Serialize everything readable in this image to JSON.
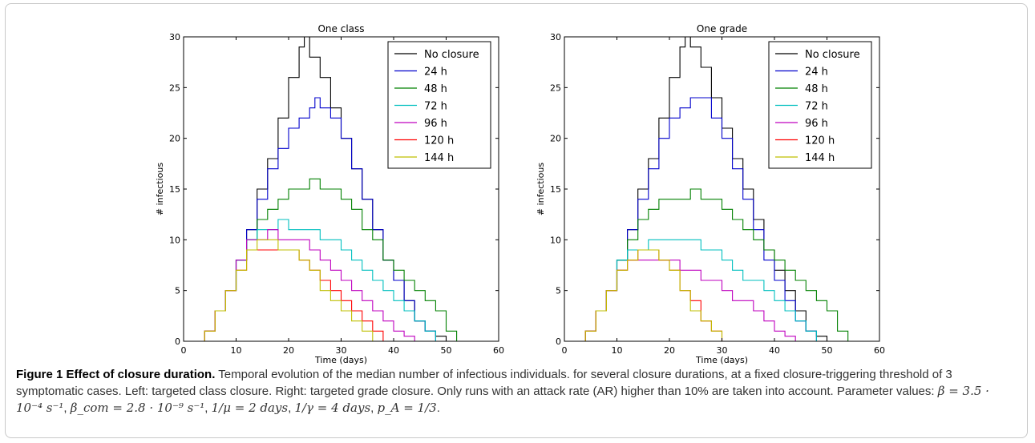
{
  "chart_data": [
    {
      "type": "line",
      "title": "One class",
      "xlabel": "Time (days)",
      "ylabel": "# infectious",
      "xlim": [
        0,
        60
      ],
      "ylim": [
        0,
        30
      ],
      "xticks": [
        0,
        10,
        20,
        30,
        40,
        50,
        60
      ],
      "yticks": [
        0,
        5,
        10,
        15,
        20,
        25,
        30
      ],
      "legend_position": "top-right",
      "series": [
        {
          "name": "No closure",
          "color": "#000000",
          "x": [
            2,
            4,
            6,
            8,
            10,
            12,
            14,
            16,
            18,
            20,
            22,
            23,
            24,
            26,
            28,
            30,
            32,
            34,
            36,
            38,
            40,
            42,
            44,
            46,
            48,
            50,
            52,
            54
          ],
          "y": [
            0,
            1,
            3,
            5,
            8,
            11,
            15,
            18,
            22,
            26,
            29,
            30,
            28,
            26,
            23,
            20,
            17,
            14,
            11,
            8,
            6,
            4,
            2,
            1,
            0.5,
            0,
            0,
            0
          ]
        },
        {
          "name": "24 h",
          "color": "#0000cc",
          "x": [
            2,
            4,
            6,
            8,
            10,
            12,
            14,
            16,
            18,
            20,
            22,
            24,
            25,
            26,
            28,
            30,
            32,
            34,
            36,
            38,
            40,
            42,
            44,
            46,
            48,
            50
          ],
          "y": [
            0,
            1,
            3,
            5,
            8,
            11,
            14,
            17,
            19,
            21,
            22,
            23,
            24,
            23,
            22,
            20,
            17,
            14,
            11,
            8,
            6,
            4,
            2,
            1,
            0,
            0
          ]
        },
        {
          "name": "48 h",
          "color": "#008000",
          "x": [
            2,
            4,
            6,
            8,
            10,
            12,
            14,
            16,
            18,
            20,
            22,
            24,
            26,
            28,
            30,
            32,
            34,
            36,
            38,
            40,
            42,
            44,
            46,
            48,
            50,
            52,
            54
          ],
          "y": [
            0,
            1,
            3,
            5,
            8,
            10,
            12,
            13,
            14,
            15,
            15,
            16,
            15,
            15,
            14,
            13,
            11,
            10,
            8,
            7,
            6,
            5,
            4,
            3,
            1,
            0,
            0
          ]
        },
        {
          "name": "72 h",
          "color": "#00bfbf",
          "x": [
            2,
            4,
            6,
            8,
            10,
            12,
            14,
            16,
            18,
            20,
            22,
            24,
            26,
            28,
            30,
            32,
            34,
            36,
            38,
            40,
            42,
            44,
            46,
            48,
            50
          ],
          "y": [
            0,
            1,
            3,
            5,
            8,
            10,
            11,
            11,
            12,
            11,
            11,
            11,
            10,
            10,
            9,
            8,
            7,
            6,
            5,
            4,
            3,
            2,
            1,
            0,
            0
          ]
        },
        {
          "name": "96 h",
          "color": "#bf00bf",
          "x": [
            2,
            4,
            6,
            8,
            10,
            12,
            14,
            16,
            18,
            20,
            22,
            24,
            26,
            28,
            30,
            32,
            34,
            36,
            38,
            40,
            42,
            44,
            46
          ],
          "y": [
            0,
            1,
            3,
            5,
            8,
            10,
            10,
            11,
            10,
            10,
            10,
            9,
            8,
            7,
            6,
            5,
            4,
            3,
            2,
            1,
            0.5,
            0,
            0
          ]
        },
        {
          "name": "120 h",
          "color": "#ff0000",
          "x": [
            2,
            4,
            6,
            8,
            10,
            12,
            14,
            16,
            18,
            20,
            22,
            24,
            26,
            28,
            30,
            32,
            34,
            36,
            38,
            40
          ],
          "y": [
            0,
            1,
            3,
            5,
            7,
            9,
            9,
            9,
            9,
            9,
            8,
            7,
            6,
            5,
            4,
            3,
            2,
            1,
            0,
            0
          ]
        },
        {
          "name": "144 h",
          "color": "#bfbf00",
          "x": [
            2,
            4,
            6,
            8,
            10,
            12,
            14,
            16,
            18,
            20,
            22,
            24,
            26,
            28,
            30,
            32,
            34,
            36,
            38
          ],
          "y": [
            0,
            1,
            3,
            5,
            7,
            9,
            10,
            10,
            9,
            9,
            8,
            7,
            5,
            4,
            3,
            2,
            1,
            0,
            0
          ]
        }
      ]
    },
    {
      "type": "line",
      "title": "One grade",
      "xlabel": "Time (days)",
      "ylabel": "# infectious",
      "xlim": [
        0,
        60
      ],
      "ylim": [
        0,
        30
      ],
      "xticks": [
        0,
        10,
        20,
        30,
        40,
        50,
        60
      ],
      "yticks": [
        0,
        5,
        10,
        15,
        20,
        25,
        30
      ],
      "legend_position": "top-right",
      "series": [
        {
          "name": "No closure",
          "color": "#000000",
          "x": [
            2,
            4,
            6,
            8,
            10,
            12,
            14,
            16,
            18,
            20,
            22,
            23,
            24,
            26,
            28,
            30,
            32,
            34,
            36,
            38,
            40,
            42,
            44,
            46,
            48,
            50,
            52
          ],
          "y": [
            0,
            1,
            3,
            5,
            8,
            11,
            15,
            18,
            22,
            26,
            29,
            30,
            29,
            27,
            24,
            21,
            18,
            15,
            12,
            9,
            7,
            5,
            3,
            1,
            0.5,
            0,
            0
          ]
        },
        {
          "name": "24 h",
          "color": "#0000cc",
          "x": [
            2,
            4,
            6,
            8,
            10,
            12,
            14,
            16,
            18,
            20,
            22,
            24,
            26,
            28,
            30,
            32,
            34,
            36,
            38,
            40,
            42,
            44,
            46,
            48,
            50
          ],
          "y": [
            0,
            1,
            3,
            5,
            8,
            11,
            14,
            17,
            20,
            22,
            23,
            24,
            24,
            22,
            20,
            17,
            14,
            11,
            8,
            6,
            4,
            2,
            1,
            0,
            0
          ]
        },
        {
          "name": "48 h",
          "color": "#008000",
          "x": [
            2,
            4,
            6,
            8,
            10,
            12,
            14,
            16,
            18,
            20,
            22,
            24,
            26,
            28,
            30,
            32,
            34,
            36,
            38,
            40,
            42,
            44,
            46,
            48,
            50,
            52,
            54,
            56
          ],
          "y": [
            0,
            1,
            3,
            5,
            8,
            10,
            12,
            13,
            14,
            14,
            14,
            15,
            14,
            14,
            13,
            12,
            11,
            10,
            9,
            8,
            7,
            6,
            5,
            4,
            3,
            1,
            0,
            0
          ]
        },
        {
          "name": "72 h",
          "color": "#00bfbf",
          "x": [
            2,
            4,
            6,
            8,
            10,
            12,
            14,
            16,
            18,
            20,
            22,
            24,
            26,
            28,
            30,
            32,
            34,
            36,
            38,
            40,
            42,
            44,
            46,
            48,
            50
          ],
          "y": [
            0,
            1,
            3,
            5,
            8,
            9,
            9,
            10,
            10,
            10,
            10,
            10,
            9,
            9,
            8,
            7,
            6,
            6,
            5,
            4,
            3,
            2,
            1,
            0,
            0
          ]
        },
        {
          "name": "96 h",
          "color": "#bf00bf",
          "x": [
            2,
            4,
            6,
            8,
            10,
            12,
            14,
            16,
            18,
            20,
            22,
            24,
            26,
            28,
            30,
            32,
            34,
            36,
            38,
            40,
            42,
            44,
            46
          ],
          "y": [
            0,
            1,
            3,
            5,
            7,
            8,
            8,
            8,
            8,
            8,
            7,
            7,
            6,
            6,
            5,
            4,
            4,
            3,
            2,
            1,
            0.5,
            0,
            0
          ]
        },
        {
          "name": "120 h",
          "color": "#ff0000",
          "x": [
            2,
            4,
            6,
            8,
            10,
            12,
            14,
            16,
            18,
            20,
            22,
            24,
            26,
            28,
            30,
            32
          ],
          "y": [
            0,
            1,
            3,
            5,
            7,
            8,
            9,
            9,
            8,
            7,
            5,
            4,
            2,
            1,
            0,
            0
          ]
        },
        {
          "name": "144 h",
          "color": "#bfbf00",
          "x": [
            2,
            4,
            6,
            8,
            10,
            12,
            14,
            16,
            18,
            20,
            22,
            24,
            26,
            28,
            30,
            32
          ],
          "y": [
            0,
            1,
            3,
            5,
            7,
            8,
            9,
            9,
            8,
            7,
            5,
            3,
            2,
            1,
            0,
            0
          ]
        }
      ]
    }
  ],
  "caption": {
    "label": "Figure 1 Effect of closure duration.",
    "text_1": "Temporal evolution of the median number of infectious individuals. for several closure durations, at a fixed closure-triggering threshold of 3 symptomatic cases. Left: targeted class closure. Right: targeted grade closure. Only runs with an attack rate (AR) higher than 10% are taken into account. Parameter values:",
    "beta": "β = 3.5 · 10⁻⁴ s⁻¹",
    "beta_com": "β_com = 2.8 · 10⁻⁹ s⁻¹",
    "mu": "1/μ = 2 days",
    "gamma": "1/γ = 4 days",
    "pa": "p_A = 1/3"
  }
}
